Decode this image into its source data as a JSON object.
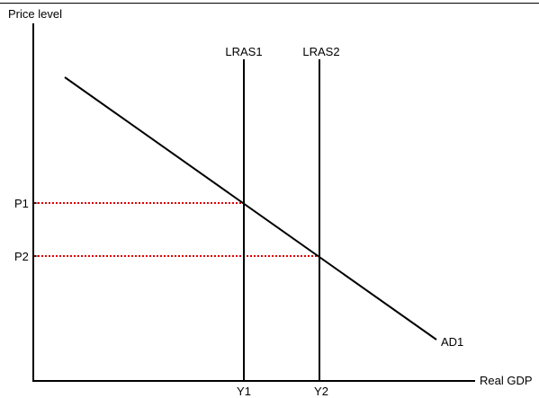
{
  "diagram": {
    "y_axis_label": "Price level",
    "x_axis_label": "Real GDP",
    "curves": {
      "lras1": "LRAS1",
      "lras2": "LRAS2",
      "ad1": "AD1"
    },
    "price_levels": {
      "p1": "P1",
      "p2": "P2"
    },
    "output_levels": {
      "y1": "Y1",
      "y2": "Y2"
    },
    "colors": {
      "axes": "#000000",
      "curves": "#000000",
      "guide_lines": "#e00000"
    }
  }
}
